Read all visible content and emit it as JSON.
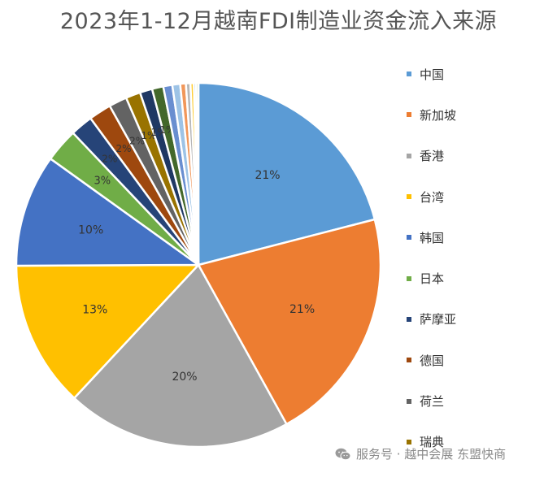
{
  "chart_data": {
    "type": "pie",
    "title": "2023年1-12月越南FDI制造业资金流入来源",
    "slices": [
      {
        "label": "中国",
        "value": 21,
        "color": "#5b9bd5",
        "data_label": "21%"
      },
      {
        "label": "新加坡",
        "value": 21,
        "color": "#ed7d31",
        "data_label": "21%"
      },
      {
        "label": "香港",
        "value": 20,
        "color": "#a5a5a5",
        "data_label": "20%"
      },
      {
        "label": "台湾",
        "value": 13,
        "color": "#ffc000",
        "data_label": "13%"
      },
      {
        "label": "韩国",
        "value": 10,
        "color": "#4472c4",
        "data_label": "10%"
      },
      {
        "label": "日本",
        "value": 3,
        "color": "#70ad47",
        "data_label": "3%"
      },
      {
        "label": "萨摩亚",
        "value": 2,
        "color": "#264478",
        "data_label": "2%"
      },
      {
        "label": "德国",
        "value": 2,
        "color": "#9e480e",
        "data_label": "2%"
      },
      {
        "label": "荷兰",
        "value": 1.6,
        "color": "#636363",
        "data_label": "2%"
      },
      {
        "label": "瑞典",
        "value": 1.3,
        "color": "#997300",
        "data_label": "1%"
      },
      {
        "label": "",
        "value": 1.1,
        "color": "#1f3864",
        "data_label": "1%"
      },
      {
        "label": "",
        "value": 1.0,
        "color": "#43682b",
        "data_label": "1%"
      },
      {
        "label": "",
        "value": 0.8,
        "color": "#698ed0",
        "data_label": ""
      },
      {
        "label": "",
        "value": 0.7,
        "color": "#9dc3e6",
        "data_label": ""
      },
      {
        "label": "",
        "value": 0.5,
        "color": "#f1975a",
        "data_label": ""
      },
      {
        "label": "",
        "value": 0.4,
        "color": "#b7b7b7",
        "data_label": ""
      },
      {
        "label": "",
        "value": 0.3,
        "color": "#ffcd33",
        "data_label": ""
      },
      {
        "label": "",
        "value": 0.2,
        "color": "#7cafdd",
        "data_label": ""
      },
      {
        "label": "",
        "value": 0.2,
        "color": "#a9d18e",
        "data_label": ""
      }
    ],
    "legend_position": "right"
  },
  "watermark": {
    "text": "服务号 · 越中会展 东盟快商",
    "icon": "wechat-icon"
  }
}
